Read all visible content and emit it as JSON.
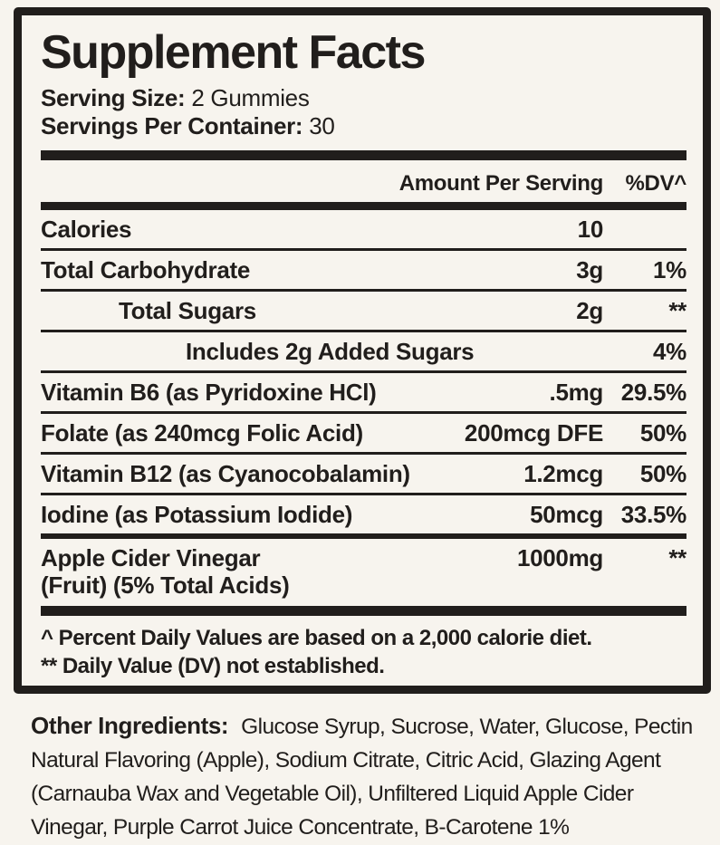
{
  "colors": {
    "background": "#f7f4ee",
    "ink": "#211e1c"
  },
  "panel": {
    "title": "Supplement Facts",
    "serving_size": {
      "label": "Serving Size:",
      "value": "2 Gummies"
    },
    "servings_per_container": {
      "label": "Servings Per Container:",
      "value": "30"
    },
    "columns": {
      "amount": "Amount Per Serving",
      "dv": "%DV^"
    },
    "rows": [
      {
        "name": "Calories",
        "amount": "10",
        "dv": "",
        "indent": 0,
        "divider": "thin"
      },
      {
        "name": "Total Carbohydrate",
        "amount": "3g",
        "dv": "1%",
        "indent": 0,
        "divider": "thin"
      },
      {
        "name": "Total Sugars",
        "amount": "2g",
        "dv": "**",
        "indent": 1,
        "divider": "thin"
      },
      {
        "name": "Includes 2g Added Sugars",
        "amount": "",
        "dv": "4%",
        "indent": 2,
        "divider": "thin"
      },
      {
        "name": "Vitamin B6 (as Pyridoxine HCl)",
        "amount": ".5mg",
        "dv": "29.5%",
        "indent": 0,
        "divider": "thin"
      },
      {
        "name": "Folate (as 240mcg Folic Acid)",
        "amount": "200mcg DFE",
        "dv": "50%",
        "indent": 0,
        "divider": "thin"
      },
      {
        "name": "Vitamin B12 (as Cyanocobalamin)",
        "amount": "1.2mcg",
        "dv": "50%",
        "indent": 0,
        "divider": "thin"
      },
      {
        "name": "Iodine (as Potassium Iodide)",
        "amount": "50mcg",
        "dv": "33.5%",
        "indent": 0,
        "divider": "medium"
      },
      {
        "name": "Apple Cider Vinegar",
        "name_line2": "(Fruit) (5% Total Acids)",
        "amount": "1000mg",
        "dv": "**",
        "indent": 0,
        "divider": "none"
      }
    ],
    "footnotes": [
      "^ Percent Daily Values are based on a 2,000 calorie diet.",
      "** Daily Value (DV) not established."
    ]
  },
  "other_ingredients": {
    "label": "Other Ingredients:",
    "lines": [
      "Glucose Syrup, Sucrose, Water, Glucose, Pectin",
      "Natural Flavoring (Apple), Sodium Citrate, Citric Acid, Glazing Agent",
      "(Carnauba Wax and Vegetable Oil), Unfiltered Liquid Apple Cider",
      "Vinegar, Purple Carrot Juice Concentrate, B-Carotene 1%"
    ]
  }
}
